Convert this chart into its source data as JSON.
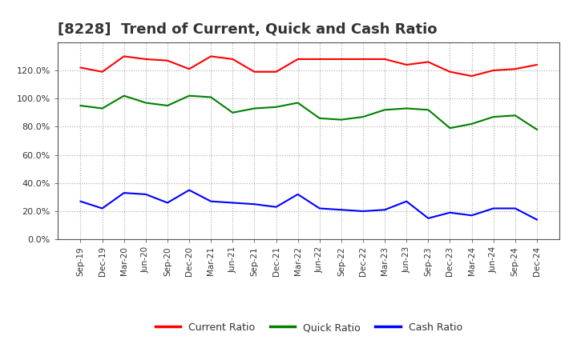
{
  "title": "[8228]  Trend of Current, Quick and Cash Ratio",
  "x_labels": [
    "Sep-19",
    "Dec-19",
    "Mar-20",
    "Jun-20",
    "Sep-20",
    "Dec-20",
    "Mar-21",
    "Jun-21",
    "Sep-21",
    "Dec-21",
    "Mar-22",
    "Jun-22",
    "Sep-22",
    "Dec-22",
    "Mar-23",
    "Jun-23",
    "Sep-23",
    "Dec-23",
    "Mar-24",
    "Jun-24",
    "Sep-24",
    "Dec-24"
  ],
  "current_ratio": [
    122,
    119,
    130,
    128,
    127,
    121,
    130,
    128,
    119,
    119,
    128,
    128,
    128,
    128,
    128,
    124,
    126,
    119,
    116,
    120,
    121,
    124
  ],
  "quick_ratio": [
    95,
    93,
    102,
    97,
    95,
    102,
    101,
    90,
    93,
    94,
    97,
    86,
    85,
    87,
    92,
    93,
    92,
    79,
    82,
    87,
    88,
    78
  ],
  "cash_ratio": [
    27,
    22,
    33,
    32,
    26,
    35,
    27,
    26,
    25,
    23,
    32,
    22,
    21,
    20,
    21,
    27,
    15,
    19,
    17,
    22,
    22,
    14
  ],
  "current_color": "#FF0000",
  "quick_color": "#008000",
  "cash_color": "#0000FF",
  "ylim": [
    0,
    140
  ],
  "yticks": [
    0,
    20,
    40,
    60,
    80,
    100,
    120
  ],
  "background_color": "#FFFFFF",
  "grid_color": "#AAAAAA",
  "title_fontsize": 13,
  "line_width": 1.5
}
